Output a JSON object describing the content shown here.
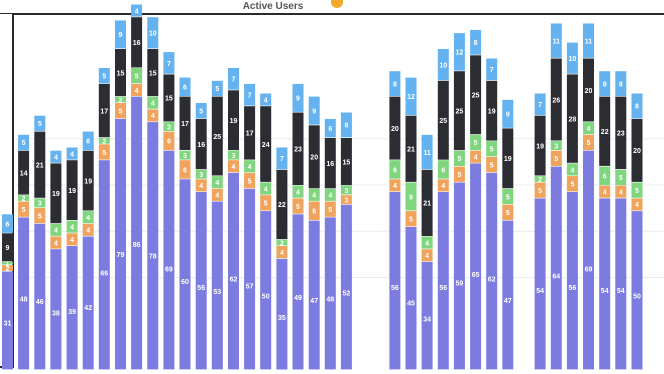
{
  "header": {
    "title": "Active Users"
  },
  "chart_data": {
    "type": "bar",
    "stacked": true,
    "grid": true,
    "colors": {
      "segment_1": "#7b7be0",
      "segment_2": "#f0a35c",
      "segment_3": "#7fd67f",
      "segment_4": "#2c2d33",
      "segment_5": "#64b2ef"
    },
    "bars": [
      {
        "x": 1,
        "values": [
          31,
          2,
          1,
          9,
          6
        ]
      },
      {
        "x": 2,
        "values": [
          48,
          5,
          2,
          14,
          5
        ]
      },
      {
        "x": 3,
        "values": [
          46,
          5,
          3,
          21,
          5
        ]
      },
      {
        "x": 4,
        "values": [
          38,
          4,
          4,
          19,
          4
        ]
      },
      {
        "x": 5,
        "values": [
          39,
          4,
          4,
          19,
          4
        ]
      },
      {
        "x": 6,
        "values": [
          42,
          4,
          4,
          19,
          6
        ]
      },
      {
        "x": 7,
        "values": [
          66,
          5,
          2,
          17,
          5
        ]
      },
      {
        "x": 8,
        "values": [
          79,
          5,
          2,
          15,
          9
        ]
      },
      {
        "x": 9,
        "values": [
          86,
          4,
          5,
          16,
          4
        ]
      },
      {
        "x": 10,
        "values": [
          78,
          4,
          4,
          15,
          10
        ]
      },
      {
        "x": 11,
        "values": [
          69,
          6,
          3,
          15,
          7
        ]
      },
      {
        "x": 12,
        "values": [
          60,
          6,
          3,
          17,
          6
        ]
      },
      {
        "x": 13,
        "values": [
          56,
          4,
          3,
          16,
          5
        ]
      },
      {
        "x": 14,
        "values": [
          53,
          4,
          4,
          25,
          5
        ]
      },
      {
        "x": 15,
        "values": [
          62,
          4,
          3,
          19,
          7
        ]
      },
      {
        "x": 16,
        "values": [
          57,
          5,
          4,
          17,
          7
        ]
      },
      {
        "x": 17,
        "values": [
          50,
          5,
          4,
          24,
          4
        ]
      },
      {
        "x": 18,
        "values": [
          35,
          4,
          2,
          22,
          7
        ]
      },
      {
        "x": 19,
        "values": [
          49,
          5,
          4,
          23,
          9
        ]
      },
      {
        "x": 20,
        "values": [
          47,
          6,
          4,
          20,
          9
        ]
      },
      {
        "x": 21,
        "values": [
          48,
          5,
          4,
          16,
          6
        ]
      },
      {
        "x": 22,
        "values": [
          52,
          3,
          3,
          15,
          8
        ]
      },
      {
        "x": 23,
        "values": null
      },
      {
        "x": 24,
        "values": null
      },
      {
        "x": 25,
        "values": [
          56,
          4,
          6,
          20,
          8
        ]
      },
      {
        "x": 26,
        "values": [
          45,
          5,
          9,
          21,
          12
        ]
      },
      {
        "x": 27,
        "values": [
          34,
          4,
          4,
          21,
          11
        ]
      },
      {
        "x": 28,
        "values": [
          56,
          4,
          6,
          25,
          10
        ]
      },
      {
        "x": 29,
        "values": [
          59,
          5,
          5,
          25,
          12
        ]
      },
      {
        "x": 30,
        "values": [
          65,
          4,
          5,
          25,
          8
        ]
      },
      {
        "x": 31,
        "values": [
          62,
          5,
          5,
          19,
          7
        ]
      },
      {
        "x": 32,
        "values": [
          47,
          5,
          5,
          19,
          9
        ]
      },
      {
        "x": 33,
        "values": null
      },
      {
        "x": 34,
        "values": [
          54,
          5,
          2,
          19,
          7
        ]
      },
      {
        "x": 35,
        "values": [
          64,
          5,
          3,
          26,
          11
        ]
      },
      {
        "x": 36,
        "values": [
          56,
          5,
          4,
          28,
          10
        ]
      },
      {
        "x": 37,
        "values": [
          69,
          5,
          4,
          20,
          11
        ]
      },
      {
        "x": 38,
        "values": [
          54,
          4,
          6,
          22,
          8
        ]
      },
      {
        "x": 39,
        "values": [
          54,
          4,
          5,
          23,
          8
        ]
      },
      {
        "x": 40,
        "values": [
          50,
          4,
          5,
          20,
          8
        ]
      }
    ],
    "ylim": [
      0,
      112
    ]
  }
}
